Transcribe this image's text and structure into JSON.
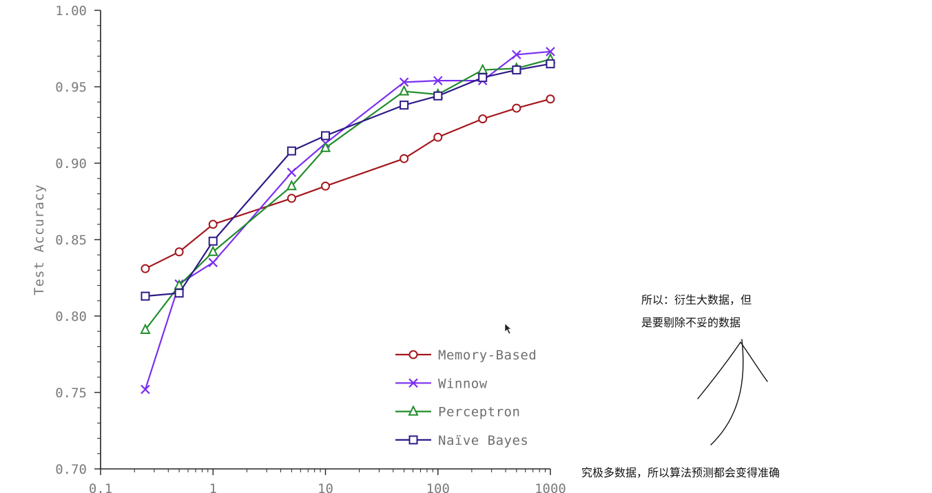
{
  "chart_data": {
    "type": "line",
    "xlabel": "",
    "ylabel": "Test Accuracy",
    "x_scale": "log",
    "xlim": [
      0.1,
      1000
    ],
    "ylim": [
      0.7,
      1.0
    ],
    "x_ticks": [
      {
        "value": 0.1,
        "label": "0.1"
      },
      {
        "value": 1,
        "label": "1"
      },
      {
        "value": 10,
        "label": "10"
      },
      {
        "value": 100,
        "label": "100"
      },
      {
        "value": 1000,
        "label": "1000"
      }
    ],
    "y_ticks": [
      {
        "value": 0.7,
        "label": "0.70"
      },
      {
        "value": 0.75,
        "label": "0.75"
      },
      {
        "value": 0.8,
        "label": "0.80"
      },
      {
        "value": 0.85,
        "label": "0.85"
      },
      {
        "value": 0.9,
        "label": "0.90"
      },
      {
        "value": 0.95,
        "label": "0.95"
      },
      {
        "value": 1.0,
        "label": "1.00"
      }
    ],
    "grid": false,
    "legend_position": "bottom-right",
    "x": [
      0.25,
      0.5,
      1,
      5,
      10,
      50,
      100,
      250,
      500,
      1000
    ],
    "series": [
      {
        "name": "Memory-Based",
        "color": "#a3151b",
        "marker": "circle",
        "values": [
          0.831,
          0.842,
          0.86,
          0.877,
          0.885,
          0.903,
          0.917,
          0.929,
          0.936,
          0.942
        ]
      },
      {
        "name": "Winnow",
        "color": "#7a2ff0",
        "marker": "x",
        "values": [
          0.752,
          0.821,
          0.835,
          0.894,
          0.913,
          0.953,
          0.954,
          0.954,
          0.971,
          0.973
        ]
      },
      {
        "name": "Perceptron",
        "color": "#1f8c2a",
        "marker": "triangle",
        "values": [
          0.791,
          0.82,
          0.842,
          0.885,
          0.91,
          0.947,
          0.945,
          0.961,
          0.962,
          0.968
        ]
      },
      {
        "name": "Naïve Bayes",
        "color": "#2e1a86",
        "marker": "square",
        "values": [
          0.813,
          0.815,
          0.849,
          0.908,
          0.918,
          0.938,
          0.944,
          0.956,
          0.961,
          0.965
        ]
      }
    ]
  },
  "annotations": {
    "note_line1": "所以：衍生大数据，但",
    "note_line2": "是要剔除不妥的数据",
    "note_bottom": "究极多数据，所以算法预测都会变得准确"
  }
}
